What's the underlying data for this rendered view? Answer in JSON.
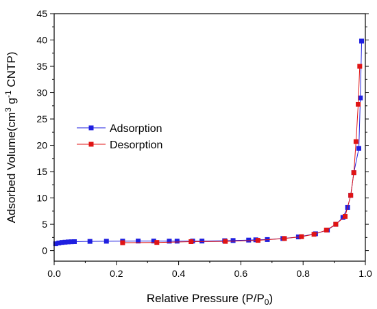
{
  "chart_data": {
    "type": "scatter",
    "xlabel_main": "Relative Pressure (P/P",
    "xlabel_sub": "0",
    "xlabel_end": ")",
    "ylabel_pre": "Adsorbed Volume(cm",
    "ylabel_sup": "3",
    "ylabel_mid": " g",
    "ylabel_sup2": "-1",
    "ylabel_post": " CNTP)",
    "xlim": [
      0.0,
      1.0
    ],
    "ylim": [
      -2,
      45
    ],
    "xticks": [
      "0.0",
      "0.2",
      "0.4",
      "0.6",
      "0.8",
      "1.0"
    ],
    "yticks": [
      "0",
      "5",
      "10",
      "15",
      "20",
      "25",
      "30",
      "35",
      "40",
      "45"
    ],
    "legend_position": "middle-left",
    "series": [
      {
        "name": "Adsorption",
        "color": "#1f1fe0",
        "x": [
          0.005,
          0.015,
          0.025,
          0.035,
          0.045,
          0.055,
          0.065,
          0.115,
          0.168,
          0.22,
          0.27,
          0.32,
          0.37,
          0.395,
          0.445,
          0.475,
          0.548,
          0.575,
          0.625,
          0.648,
          0.685,
          0.735,
          0.785,
          0.84,
          0.878,
          0.905,
          0.928,
          0.943,
          0.953,
          0.963,
          0.979,
          0.984,
          0.988
        ],
        "y": [
          1.3,
          1.45,
          1.55,
          1.6,
          1.65,
          1.68,
          1.7,
          1.75,
          1.78,
          1.8,
          1.82,
          1.82,
          1.8,
          1.8,
          1.82,
          1.82,
          1.88,
          1.92,
          2.0,
          2.05,
          2.1,
          2.3,
          2.6,
          3.2,
          3.9,
          5.0,
          6.3,
          8.2,
          10.5,
          14.8,
          19.4,
          29.0,
          39.8
        ]
      },
      {
        "name": "Desorption",
        "color": "#e01414",
        "x": [
          0.22,
          0.33,
          0.44,
          0.55,
          0.655,
          0.74,
          0.795,
          0.835,
          0.875,
          0.905,
          0.935,
          0.953,
          0.963,
          0.97,
          0.977,
          0.982
        ],
        "y": [
          1.5,
          1.55,
          1.7,
          1.75,
          1.95,
          2.3,
          2.65,
          3.1,
          3.9,
          5.0,
          6.5,
          10.5,
          14.8,
          20.7,
          27.8,
          35.0
        ]
      }
    ]
  }
}
